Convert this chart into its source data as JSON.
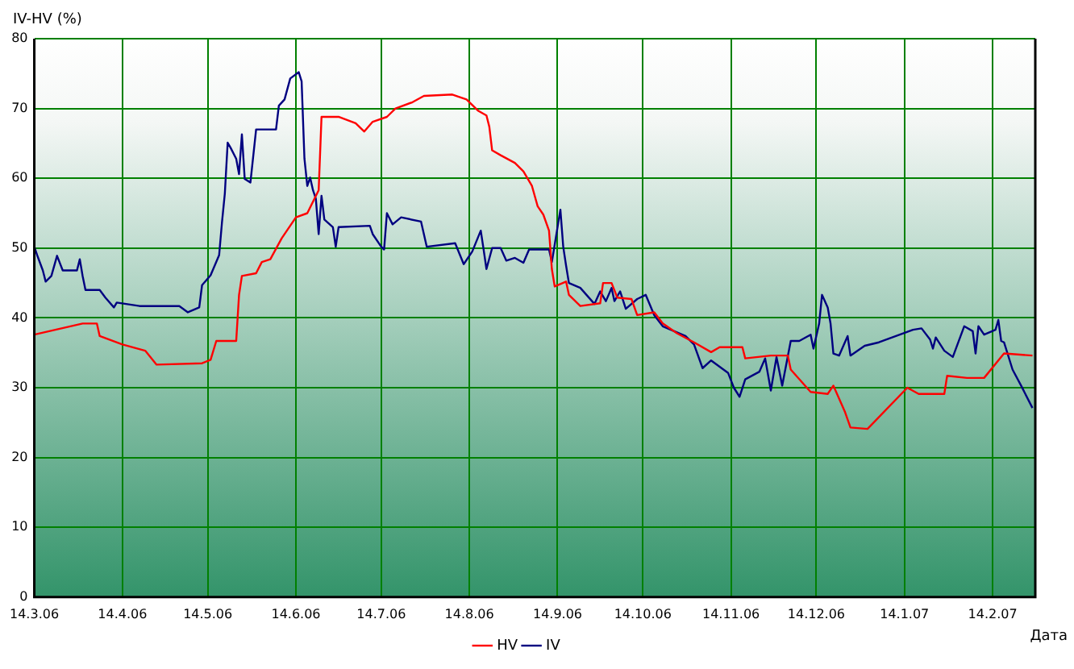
{
  "chart_data": {
    "type": "line",
    "ylabel": "IV-HV (%)",
    "xlabel": "Дата",
    "xlim": [
      "2006-03-14",
      "2007-03-01"
    ],
    "xticks": [
      {
        "value": "2006-03-14",
        "label": "14.3.06"
      },
      {
        "value": "2006-04-14",
        "label": "14.4.06"
      },
      {
        "value": "2006-05-14",
        "label": "14.5.06"
      },
      {
        "value": "2006-06-14",
        "label": "14.6.06"
      },
      {
        "value": "2006-07-14",
        "label": "14.7.06"
      },
      {
        "value": "2006-08-14",
        "label": "14.8.06"
      },
      {
        "value": "2006-09-14",
        "label": "14.9.06"
      },
      {
        "value": "2006-10-14",
        "label": "14.10.06"
      },
      {
        "value": "2006-11-14",
        "label": "14.11.06"
      },
      {
        "value": "2006-12-14",
        "label": "14.12.06"
      },
      {
        "value": "2007-01-14",
        "label": "14.1.07"
      },
      {
        "value": "2007-02-14",
        "label": "14.2.07"
      }
    ],
    "ylim": [
      0,
      80
    ],
    "yticks": [
      0,
      10,
      20,
      30,
      40,
      50,
      60,
      70,
      80
    ],
    "grid": true,
    "legend": "bottom",
    "marker": "none",
    "line_style": "solid",
    "series": [
      {
        "name": "HV",
        "color": "#ff0000",
        "x": [
          "2006-03-14",
          "2006-03-31",
          "2006-04-05",
          "2006-04-06",
          "2006-04-14",
          "2006-04-22",
          "2006-04-26",
          "2006-05-12",
          "2006-05-15",
          "2006-05-17",
          "2006-05-24",
          "2006-05-25",
          "2006-05-26",
          "2006-05-31",
          "2006-06-02",
          "2006-06-05",
          "2006-06-09",
          "2006-06-14",
          "2006-06-18",
          "2006-06-22",
          "2006-06-23",
          "2006-06-29",
          "2006-07-05",
          "2006-07-08",
          "2006-07-11",
          "2006-07-16",
          "2006-07-19",
          "2006-07-25",
          "2006-07-29",
          "2006-08-08",
          "2006-08-13",
          "2006-08-17",
          "2006-08-20",
          "2006-08-21",
          "2006-08-22",
          "2006-08-25",
          "2006-08-30",
          "2006-09-02",
          "2006-09-05",
          "2006-09-07",
          "2006-09-09",
          "2006-09-11",
          "2006-09-12",
          "2006-09-13",
          "2006-09-17",
          "2006-09-18",
          "2006-09-22",
          "2006-09-29",
          "2006-09-30",
          "2006-10-03",
          "2006-10-05",
          "2006-10-10",
          "2006-10-12",
          "2006-10-18",
          "2006-10-21",
          "2006-10-26",
          "2006-11-01",
          "2006-11-07",
          "2006-11-10",
          "2006-11-18",
          "2006-11-19",
          "2006-11-28",
          "2006-12-04",
          "2006-12-05",
          "2006-12-12",
          "2006-12-18",
          "2006-12-20",
          "2006-12-24",
          "2006-12-26",
          "2007-01-01",
          "2007-01-15",
          "2007-01-19",
          "2007-01-28",
          "2007-01-29",
          "2007-02-05",
          "2007-02-11",
          "2007-02-18",
          "2007-02-28"
        ],
        "values": [
          37.6,
          39.2,
          39.2,
          37.4,
          36.2,
          35.3,
          33.3,
          33.5,
          34,
          36.7,
          36.7,
          43.3,
          46,
          46.4,
          48,
          48.4,
          51.4,
          54.4,
          55,
          58.3,
          68.8,
          68.8,
          67.9,
          66.7,
          68.1,
          68.8,
          70,
          70.9,
          71.8,
          72,
          71.3,
          69.7,
          69,
          67.4,
          64,
          63.3,
          62.2,
          61,
          58.9,
          56,
          54.8,
          52.5,
          47,
          44.5,
          45.2,
          43.3,
          41.7,
          42.1,
          45,
          45,
          42.9,
          42.7,
          40.4,
          40.8,
          39.2,
          37.8,
          36.5,
          35.1,
          35.8,
          35.8,
          34.2,
          34.6,
          34.6,
          32.6,
          29.4,
          29.1,
          30.3,
          26.6,
          24.3,
          24.1,
          30,
          29.1,
          29.1,
          31.7,
          31.4,
          31.4,
          34.9,
          34.6
        ]
      },
      {
        "name": "IV",
        "color": "#000080",
        "x": [
          "2006-03-14",
          "2006-03-15",
          "2006-03-17",
          "2006-03-18",
          "2006-03-20",
          "2006-03-22",
          "2006-03-24",
          "2006-03-29",
          "2006-03-30",
          "2006-03-31",
          "2006-04-01",
          "2006-04-06",
          "2006-04-08",
          "2006-04-11",
          "2006-04-12",
          "2006-04-20",
          "2006-05-04",
          "2006-05-07",
          "2006-05-11",
          "2006-05-12",
          "2006-05-15",
          "2006-05-18",
          "2006-05-19",
          "2006-05-20",
          "2006-05-21",
          "2006-05-22",
          "2006-05-24",
          "2006-05-25",
          "2006-05-26",
          "2006-05-27",
          "2006-05-29",
          "2006-05-31",
          "2006-06-07",
          "2006-06-08",
          "2006-06-10",
          "2006-06-12",
          "2006-06-15",
          "2006-06-16",
          "2006-06-17",
          "2006-06-18",
          "2006-06-19",
          "2006-06-20",
          "2006-06-21",
          "2006-06-22",
          "2006-06-23",
          "2006-06-24",
          "2006-06-27",
          "2006-06-28",
          "2006-06-29",
          "2006-07-10",
          "2006-07-11",
          "2006-07-14",
          "2006-07-15",
          "2006-07-16",
          "2006-07-18",
          "2006-07-21",
          "2006-07-28",
          "2006-07-30",
          "2006-08-09",
          "2006-08-12",
          "2006-08-15",
          "2006-08-18",
          "2006-08-19",
          "2006-08-20",
          "2006-08-22",
          "2006-08-25",
          "2006-08-27",
          "2006-08-30",
          "2006-09-02",
          "2006-09-04",
          "2006-09-11",
          "2006-09-12",
          "2006-09-15",
          "2006-09-16",
          "2006-09-17",
          "2006-09-18",
          "2006-09-22",
          "2006-09-27",
          "2006-09-29",
          "2006-10-01",
          "2006-10-03",
          "2006-10-04",
          "2006-10-06",
          "2006-10-08",
          "2006-10-12",
          "2006-10-15",
          "2006-10-18",
          "2006-10-21",
          "2006-10-29",
          "2006-11-01",
          "2006-11-04",
          "2006-11-07",
          "2006-11-13",
          "2006-11-15",
          "2006-11-17",
          "2006-11-19",
          "2006-11-24",
          "2006-11-26",
          "2006-11-28",
          "2006-11-30",
          "2006-12-02",
          "2006-12-05",
          "2006-12-08",
          "2006-12-12",
          "2006-12-13",
          "2006-12-15",
          "2006-12-16",
          "2006-12-18",
          "2006-12-19",
          "2006-12-20",
          "2006-12-22",
          "2006-12-25",
          "2006-12-26",
          "2006-12-31",
          "2007-01-05",
          "2007-01-11",
          "2007-01-17",
          "2007-01-20",
          "2007-01-23",
          "2007-01-24",
          "2007-01-25",
          "2007-01-28",
          "2007-01-31",
          "2007-02-04",
          "2007-02-07",
          "2007-02-08",
          "2007-02-09",
          "2007-02-11",
          "2007-02-15",
          "2007-02-16",
          "2007-02-17",
          "2007-02-18",
          "2007-02-21",
          "2007-02-24",
          "2007-02-28"
        ],
        "values": [
          50.2,
          49,
          46.8,
          45.2,
          46,
          48.9,
          46.8,
          46.8,
          48.4,
          46,
          44,
          44,
          42.9,
          41.5,
          42.2,
          41.7,
          41.7,
          40.8,
          41.5,
          44.7,
          46.1,
          49,
          53.7,
          57.8,
          65.1,
          64.4,
          62.8,
          60.6,
          66.3,
          59.9,
          59.4,
          67,
          67,
          70.4,
          71.3,
          74.3,
          75.2,
          73.9,
          62.8,
          58.9,
          60.1,
          58.3,
          57.1,
          52,
          57.5,
          54.1,
          53,
          50.2,
          53,
          53.2,
          52,
          50.2,
          49.8,
          55,
          53.4,
          54.4,
          53.8,
          50.2,
          50.7,
          47.7,
          49.5,
          52.5,
          49.8,
          47,
          50,
          50,
          48.2,
          48.6,
          47.9,
          49.8,
          49.8,
          48,
          55.5,
          50.2,
          47.5,
          45,
          44.3,
          42,
          43.8,
          42.4,
          44.3,
          42.4,
          43.8,
          41.3,
          42.7,
          43.3,
          40.4,
          38.8,
          37.4,
          36.2,
          32.8,
          33.9,
          32.1,
          30,
          28.7,
          31.2,
          32.3,
          34.2,
          29.6,
          34.4,
          30.3,
          36.7,
          36.7,
          37.6,
          35.6,
          39.2,
          43.3,
          41.5,
          39.2,
          34.9,
          34.6,
          37.4,
          34.6,
          36,
          36.5,
          37.4,
          38.3,
          38.5,
          36.9,
          35.6,
          37.2,
          35.3,
          34.4,
          38.8,
          38.1,
          34.9,
          38.8,
          37.6,
          38.3,
          39.7,
          36.7,
          36.5,
          32.6,
          30.3,
          27.1
        ]
      }
    ]
  }
}
